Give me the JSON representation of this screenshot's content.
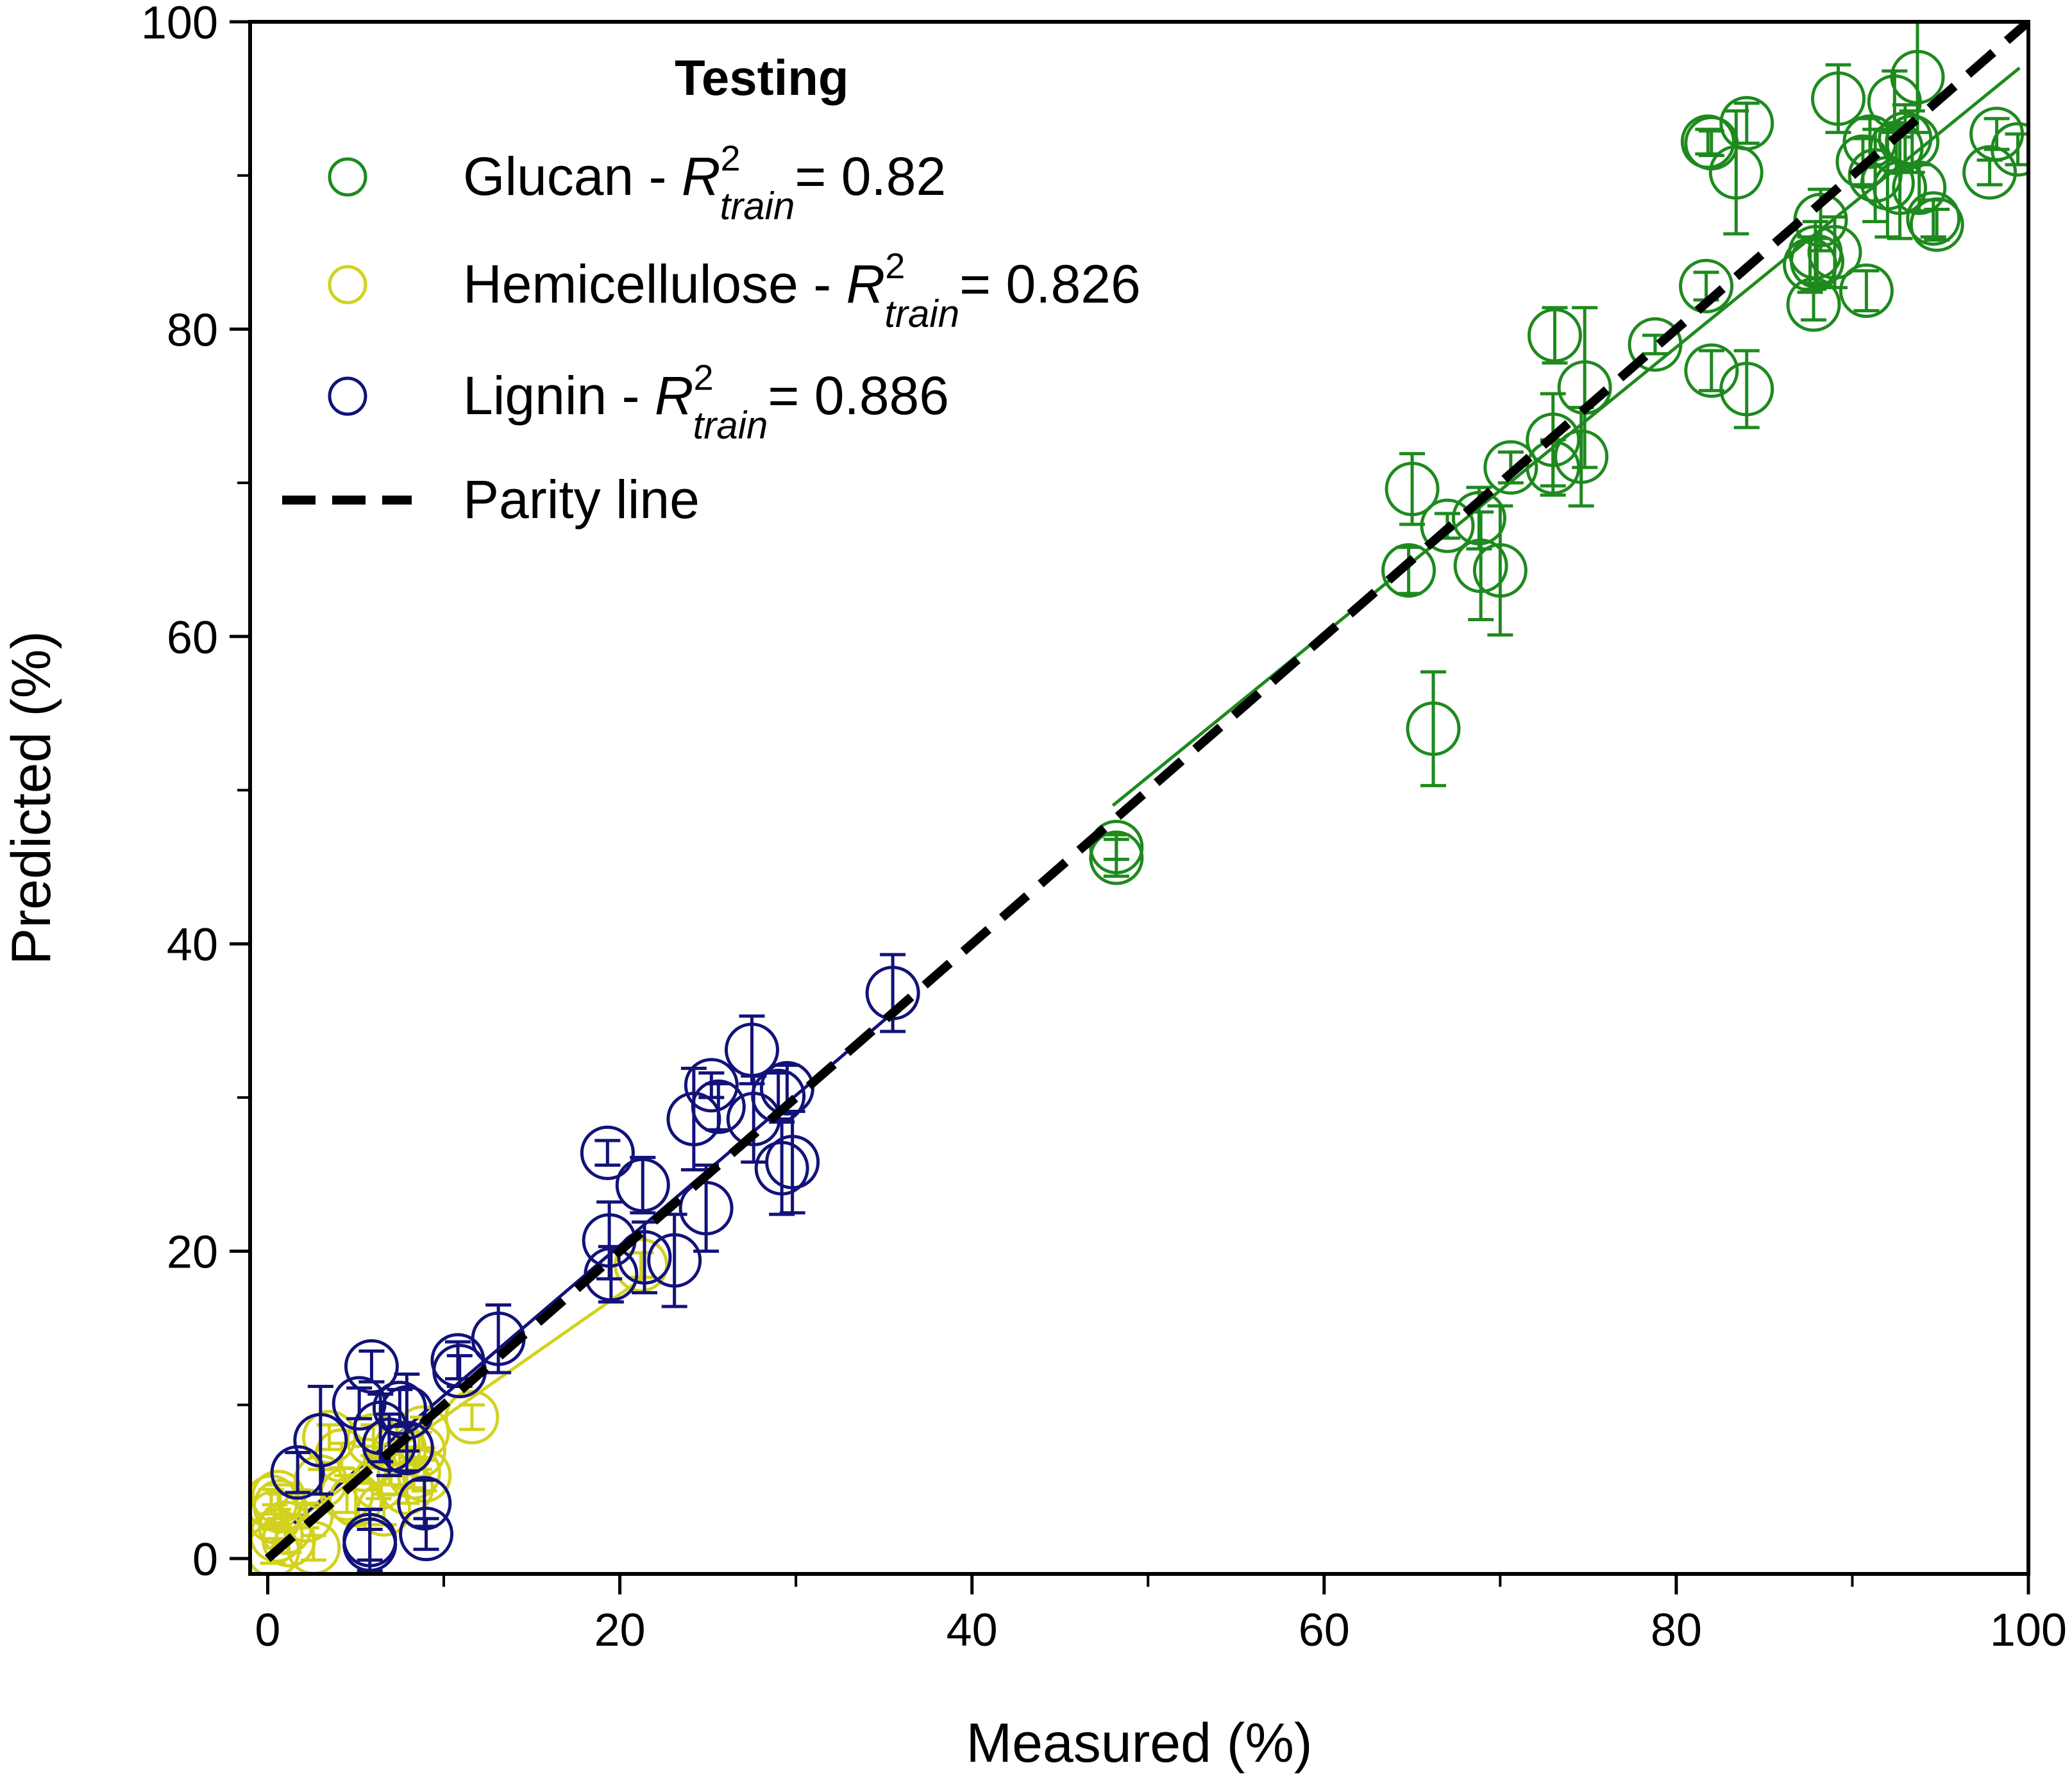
{
  "chart_data": {
    "type": "scatter",
    "xlabel": "Measured (%)",
    "ylabel": "Predicted (%)",
    "xlim": [
      -1,
      100
    ],
    "ylim": [
      -1,
      100
    ],
    "xticks": [
      0,
      20,
      40,
      60,
      80,
      100
    ],
    "yticks": [
      0,
      20,
      40,
      60,
      80,
      100
    ],
    "minor_ticks": [
      10,
      30,
      50,
      70,
      90
    ],
    "grid": false,
    "legend": {
      "title": "Testing",
      "placement": "top-left",
      "entries": [
        {
          "series": "glucan",
          "prefix": "Glucan - ",
          "value": "= 0.82"
        },
        {
          "series": "hemicellulose",
          "prefix": "Hemicellulose - ",
          "value": "= 0.826"
        },
        {
          "series": "lignin",
          "prefix": "Lignin - ",
          "value": "= 0.886"
        },
        {
          "series": "parity",
          "label": "Parity line"
        }
      ],
      "r2_symbol": "R",
      "r2_sup": "2",
      "r2_sub": "train"
    },
    "parity_line": {
      "x": [
        0,
        100
      ],
      "y": [
        0,
        100
      ],
      "color": "#000000"
    },
    "series": [
      {
        "key": "glucan",
        "color": "#1e8a1e",
        "fit": {
          "x": [
            48,
            99.5
          ],
          "y": [
            49,
            97
          ]
        },
        "points": [
          [
            48.2,
            46.3,
            0.8
          ],
          [
            48.2,
            45.6,
            1.2
          ],
          [
            64.8,
            64.3,
            1.5
          ],
          [
            65.0,
            69.6,
            2.3
          ],
          [
            66.2,
            54.0,
            3.7
          ],
          [
            67.0,
            67.2,
            0.8
          ],
          [
            68.8,
            67.7,
            2.0
          ],
          [
            68.9,
            64.6,
            3.5
          ],
          [
            70.0,
            64.3,
            4.2
          ],
          [
            70.6,
            71.0,
            1.0
          ],
          [
            73.0,
            71.0,
            1.8
          ],
          [
            73.0,
            72.8,
            3.0
          ],
          [
            73.1,
            79.6,
            1.8
          ],
          [
            74.6,
            71.7,
            3.2
          ],
          [
            74.8,
            76.2,
            5.2
          ],
          [
            78.8,
            79.0,
            0.6
          ],
          [
            81.7,
            82.8,
            0.9
          ],
          [
            81.8,
            92.2,
            0.8
          ],
          [
            82.0,
            92.1,
            0.8
          ],
          [
            82.0,
            77.3,
            1.3
          ],
          [
            83.4,
            90.2,
            4.0
          ],
          [
            84.0,
            93.4,
            1.3
          ],
          [
            84.0,
            76.1,
            2.5
          ],
          [
            87.6,
            84.2,
            1.8
          ],
          [
            87.8,
            81.6,
            1.0
          ],
          [
            87.9,
            85.0,
            2.0
          ],
          [
            88.2,
            87.1,
            2.0
          ],
          [
            88.0,
            84.4,
            1.5
          ],
          [
            89.0,
            85.0,
            2.3
          ],
          [
            89.2,
            95.0,
            2.2
          ],
          [
            90.6,
            90.9,
            1.5
          ],
          [
            91.0,
            92.2,
            1.5
          ],
          [
            90.8,
            82.5,
            1.3
          ],
          [
            91.3,
            90.0,
            3.0
          ],
          [
            92.0,
            89.5,
            3.5
          ],
          [
            92.4,
            94.8,
            2.0
          ],
          [
            92.5,
            91.8,
            1.5
          ],
          [
            92.7,
            89.2,
            3.3
          ],
          [
            93.0,
            92.4,
            2.2
          ],
          [
            93.4,
            92.2,
            2.0
          ],
          [
            93.7,
            96.4,
            3.6
          ],
          [
            93.8,
            89.2,
            1.5
          ],
          [
            94.6,
            87.2,
            1.2
          ],
          [
            94.8,
            86.8,
            1.0
          ],
          [
            97.8,
            90.2,
            0.8
          ],
          [
            98.2,
            92.7,
            1.0
          ],
          [
            99.4,
            91.7,
            1.0
          ]
        ]
      },
      {
        "key": "hemicellulose",
        "color": "#d2d21e",
        "fit": {
          "x": [
            0.5,
            21.5
          ],
          "y": [
            1.6,
            18.4
          ]
        },
        "points": [
          [
            0.2,
            3.7,
            0.8
          ],
          [
            0.4,
            2.7,
            0.8
          ],
          [
            0.5,
            1.5,
            0.8
          ],
          [
            0.7,
            3.4,
            0.8
          ],
          [
            1.0,
            2.0,
            0.8
          ],
          [
            0.3,
            0.5,
            0.8
          ],
          [
            0.6,
            4.0,
            0.8
          ],
          [
            1.2,
            1.2,
            0.8
          ],
          [
            2.6,
            0.7,
            0.8
          ],
          [
            2.2,
            2.8,
            0.8
          ],
          [
            3.0,
            5.0,
            0.8
          ],
          [
            3.5,
            7.9,
            0.8
          ],
          [
            4.2,
            6.7,
            0.8
          ],
          [
            4.5,
            4.2,
            1.2
          ],
          [
            5.0,
            3.8,
            1.5
          ],
          [
            5.5,
            6.1,
            1.2
          ],
          [
            6.0,
            7.7,
            1.0
          ],
          [
            6.3,
            4.9,
            1.0
          ],
          [
            6.6,
            3.2,
            1.0
          ],
          [
            7.0,
            5.8,
            1.0
          ],
          [
            7.5,
            7.1,
            1.0
          ],
          [
            7.9,
            4.6,
            1.0
          ],
          [
            8.3,
            5.6,
            1.0
          ],
          [
            8.6,
            7.0,
            1.2
          ],
          [
            8.8,
            8.2,
            1.0
          ],
          [
            8.9,
            5.4,
            1.0
          ],
          [
            11.6,
            9.2,
            0.8
          ],
          [
            21.2,
            19.1,
            0.8
          ]
        ]
      },
      {
        "key": "lignin",
        "color": "#12127a",
        "fit": {
          "x": [
            1.5,
            36
          ],
          "y": [
            2.3,
            36
          ]
        },
        "points": [
          [
            1.7,
            5.6,
            1.3
          ],
          [
            3.0,
            7.7,
            3.5
          ],
          [
            5.2,
            10.1,
            1.0
          ],
          [
            5.9,
            12.5,
            1.0
          ],
          [
            5.8,
            1.2,
            2.0
          ],
          [
            5.8,
            0.9,
            1.0
          ],
          [
            6.4,
            8.5,
            2.2
          ],
          [
            6.9,
            7.4,
            2.0
          ],
          [
            7.5,
            9.8,
            1.2
          ],
          [
            7.9,
            9.5,
            2.5
          ],
          [
            7.9,
            7.2,
            1.5
          ],
          [
            8.9,
            3.6,
            1.5
          ],
          [
            9.0,
            1.6,
            1.0
          ],
          [
            10.8,
            12.9,
            1.2
          ],
          [
            10.9,
            12.2,
            1.0
          ],
          [
            13.1,
            14.3,
            2.2
          ],
          [
            19.3,
            26.4,
            0.8
          ],
          [
            19.4,
            20.7,
            2.5
          ],
          [
            19.5,
            18.5,
            1.8
          ],
          [
            21.3,
            24.3,
            1.8
          ],
          [
            21.4,
            19.6,
            2.3
          ],
          [
            23.1,
            19.4,
            3.0
          ],
          [
            24.2,
            28.6,
            3.3
          ],
          [
            24.9,
            22.8,
            2.8
          ],
          [
            25.2,
            30.8,
            0.8
          ],
          [
            25.6,
            29.4,
            1.5
          ],
          [
            27.5,
            33.1,
            2.2
          ],
          [
            27.6,
            28.6,
            2.8
          ],
          [
            29.0,
            30.1,
            1.5
          ],
          [
            29.2,
            25.4,
            3.0
          ],
          [
            29.5,
            30.6,
            1.5
          ],
          [
            29.8,
            25.8,
            3.3
          ],
          [
            35.5,
            36.8,
            2.5
          ]
        ]
      }
    ]
  }
}
